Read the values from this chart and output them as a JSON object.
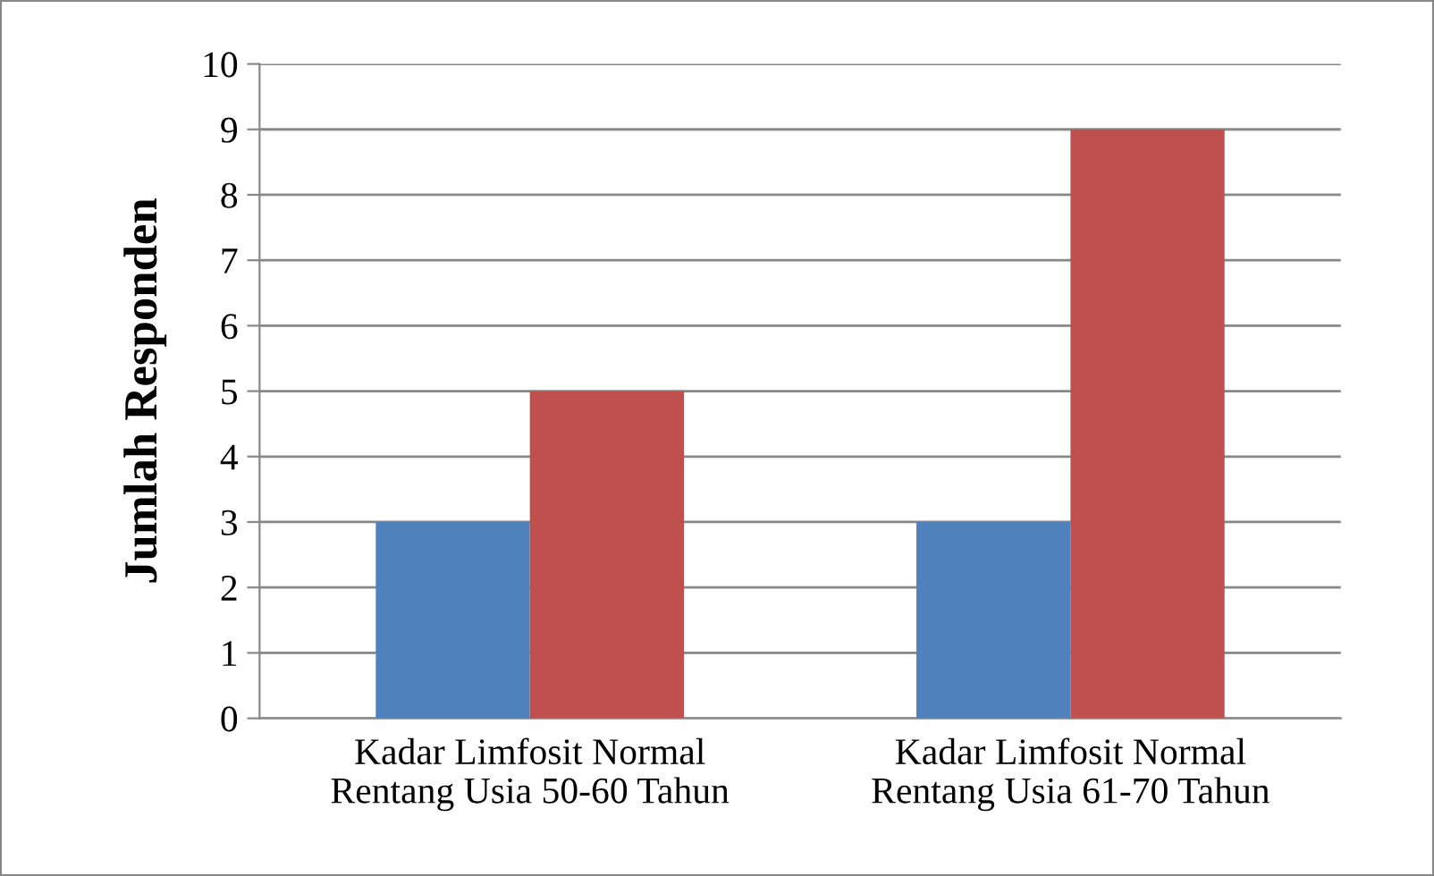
{
  "chart_data": {
    "type": "bar",
    "ylabel": "Jumlah Responden",
    "categories": [
      "Kadar Limfosit Normal\nRentang Usia 50-60 Tahun",
      "Kadar Limfosit Normal\nRentang Usia 61-70 Tahun"
    ],
    "series": [
      {
        "color": "#4f81bd",
        "values": [
          3,
          3
        ]
      },
      {
        "color": "#c0504d",
        "values": [
          5,
          9
        ]
      }
    ],
    "ylim": [
      0,
      10
    ],
    "yticks": [
      0,
      1,
      2,
      3,
      4,
      5,
      6,
      7,
      8,
      9,
      10
    ],
    "grid": "y",
    "legend": false
  }
}
